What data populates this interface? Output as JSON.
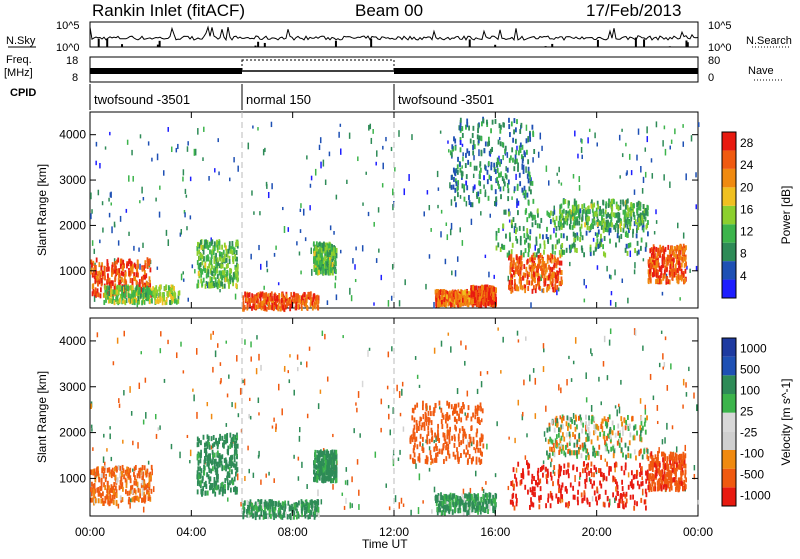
{
  "header": {
    "station": "Rankin Inlet (fitACF)",
    "beam": "Beam 00",
    "date": "17/Feb/2013"
  },
  "summary": {
    "nsky_label": "N.Sky",
    "nsearch_label": "N.Search",
    "freq_label_1": "Freq.",
    "freq_label_2": "[MHz]",
    "nave_label": "Nave",
    "cpid_label": "CPID",
    "count_ticks": {
      "top": "10^5",
      "bottom": "10^0"
    },
    "freq_ticks": [
      "18",
      "8"
    ],
    "nave_ticks": [
      "80",
      "0"
    ],
    "cpid_segments": [
      {
        "label": "twofsound -3501",
        "start": 0,
        "end": 6
      },
      {
        "label": "normal 150",
        "start": 6,
        "end": 12
      },
      {
        "label": "twofsound -3501",
        "start": 12,
        "end": 24
      }
    ]
  },
  "colors": {
    "power": [
      "#1e1eff",
      "#1e50b4",
      "#2e8b57",
      "#3cb44b",
      "#8ccf2e",
      "#f0c020",
      "#f08a10",
      "#f05a10",
      "#e81a10"
    ],
    "velocity": [
      "#e81a10",
      "#f05a10",
      "#f08a10",
      "#cfcfcf",
      "#d8d8d8",
      "#3cb44b",
      "#2e8b57",
      "#1e50b4",
      "#1e3aa0"
    ]
  },
  "chart_data": [
    {
      "type": "heatmap",
      "title": "Power",
      "xlabel": "",
      "ylabel": "Slant Range [km]",
      "xlim": [
        0,
        24
      ],
      "ylim": [
        180,
        4500
      ],
      "xticks": [
        "00:00",
        "04:00",
        "08:00",
        "12:00",
        "16:00",
        "20:00",
        "00:00"
      ],
      "yticks": [
        "1000",
        "2000",
        "3000",
        "4000"
      ],
      "colorbar": {
        "label": "Power [dB]",
        "ticks": [
          "4",
          "8",
          "12",
          "16",
          "20",
          "24",
          "28"
        ],
        "range": [
          0,
          30
        ]
      },
      "regions": [
        {
          "x": [
            0.0,
            2.4
          ],
          "y": [
            500,
            1300
          ],
          "value": 26
        },
        {
          "x": [
            0.5,
            3.5
          ],
          "y": [
            350,
            700
          ],
          "value": 14
        },
        {
          "x": [
            4.2,
            5.8
          ],
          "y": [
            700,
            1700
          ],
          "value": 12
        },
        {
          "x": [
            6.0,
            9.0
          ],
          "y": [
            200,
            550
          ],
          "value": 25
        },
        {
          "x": [
            8.8,
            9.7
          ],
          "y": [
            1000,
            1650
          ],
          "value": 12
        },
        {
          "x": [
            13.6,
            15.0
          ],
          "y": [
            300,
            600
          ],
          "value": 24
        },
        {
          "x": [
            15.0,
            16.0
          ],
          "y": [
            300,
            700
          ],
          "value": 26
        },
        {
          "x": [
            16.5,
            18.6
          ],
          "y": [
            600,
            1400
          ],
          "value": 25
        },
        {
          "x": [
            16.0,
            22.0
          ],
          "y": [
            1400,
            2400
          ],
          "value": 10
        },
        {
          "x": [
            22.0,
            23.5
          ],
          "y": [
            800,
            1600
          ],
          "value": 25
        },
        {
          "x": [
            14.2,
            17.5
          ],
          "y": [
            2500,
            4400
          ],
          "value": 8
        },
        {
          "x": [
            18.5,
            22.0
          ],
          "y": [
            2000,
            2600
          ],
          "value": 12
        }
      ]
    },
    {
      "type": "heatmap",
      "title": "Velocity",
      "xlabel": "Time UT",
      "ylabel": "Slant Range [km]",
      "xlim": [
        0,
        24
      ],
      "ylim": [
        180,
        4500
      ],
      "xticks": [
        "00:00",
        "04:00",
        "08:00",
        "12:00",
        "16:00",
        "20:00",
        "00:00"
      ],
      "yticks": [
        "1000",
        "2000",
        "3000",
        "4000"
      ],
      "colorbar": {
        "label": "Velocity [m s^-1]",
        "ticks": [
          "1000",
          "500",
          "100",
          "25",
          "-25",
          "-100",
          "-500",
          "-1000"
        ],
        "range": [
          -1000,
          1000
        ]
      },
      "regions": [
        {
          "x": [
            0.0,
            2.4
          ],
          "y": [
            500,
            1300
          ],
          "value": -150
        },
        {
          "x": [
            4.2,
            5.8
          ],
          "y": [
            700,
            2000
          ],
          "value": 200
        },
        {
          "x": [
            6.0,
            9.0
          ],
          "y": [
            200,
            550
          ],
          "value": 150
        },
        {
          "x": [
            8.8,
            9.7
          ],
          "y": [
            1000,
            1650
          ],
          "value": 200
        },
        {
          "x": [
            13.6,
            16.0
          ],
          "y": [
            300,
            700
          ],
          "value": 150
        },
        {
          "x": [
            12.6,
            15.5
          ],
          "y": [
            1400,
            2700
          ],
          "value": -300
        },
        {
          "x": [
            16.5,
            22.0
          ],
          "y": [
            400,
            1400
          ],
          "value": -600
        },
        {
          "x": [
            18.0,
            22.0
          ],
          "y": [
            1500,
            2400
          ],
          "value": 0
        },
        {
          "x": [
            22.0,
            23.5
          ],
          "y": [
            800,
            1600
          ],
          "value": -400
        }
      ]
    }
  ]
}
